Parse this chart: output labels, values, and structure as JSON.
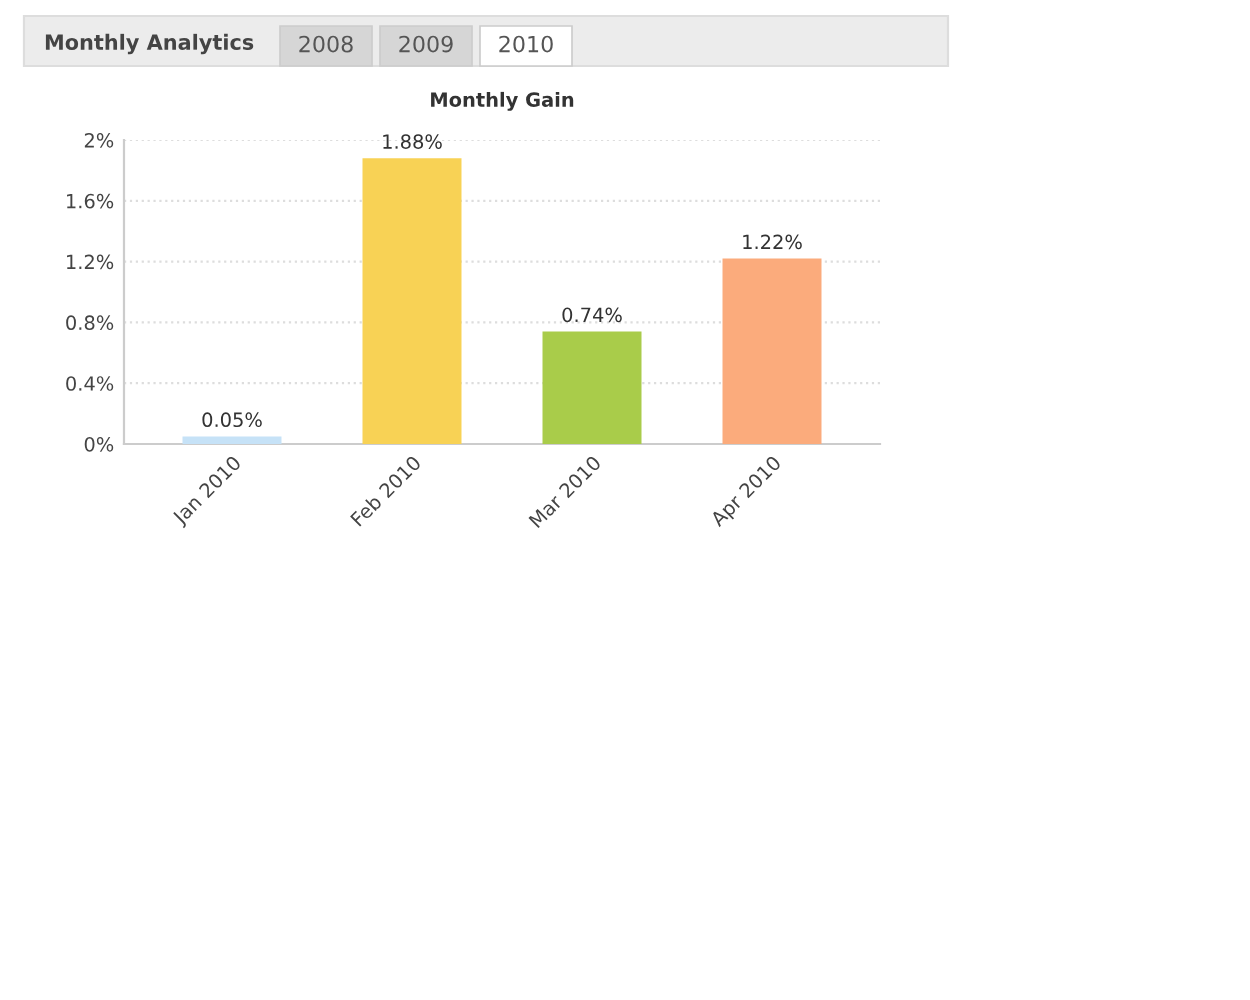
{
  "chart_data": {
    "type": "bar",
    "title": "Monthly Gain",
    "annotations": [
      "Monthly Analytics",
      "2008",
      "2009",
      "2010"
    ],
    "categories": [
      "Jan 2010",
      "Feb 2010",
      "Mar 2010",
      "Apr 2010"
    ],
    "values": [
      0.05,
      1.88,
      0.74,
      1.22
    ],
    "colors": [
      "#c6e2f7",
      "#f8d255",
      "#a9cc4a",
      "#fbab7c"
    ],
    "value_labels": [
      "0.05%",
      "1.88%",
      "0.74%",
      "1.22%"
    ],
    "ylim": [
      0,
      2
    ],
    "yticks": [
      {
        "value": 0,
        "label": "0%"
      },
      {
        "value": 0.4,
        "label": "0.4%"
      },
      {
        "value": 0.8,
        "label": "0.8%"
      },
      {
        "value": 1.2,
        "label": "1.2%"
      },
      {
        "value": 1.6,
        "label": "1.6%"
      },
      {
        "value": 2,
        "label": "2%"
      }
    ],
    "grid": "y"
  }
}
